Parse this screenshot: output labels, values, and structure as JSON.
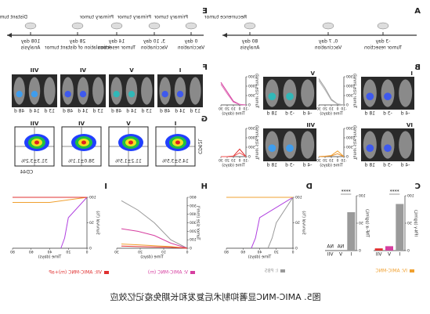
{
  "timeline_a": {
    "label": "A",
    "items": [
      {
        "day": "-3 day",
        "desc": "Tumor resection"
      },
      {
        "day": "0, 7 day",
        "desc": "Vaccination"
      },
      {
        "day": "80 day",
        "desc": "Analysis"
      }
    ],
    "notes": [
      "Recurrence tumor"
    ]
  },
  "timeline_e": {
    "label": "E",
    "items": [
      {
        "day": "0 day",
        "desc": "Vaccination"
      },
      {
        "day": "3, 10 day",
        "desc": "Vaccination"
      },
      {
        "day": "14 day",
        "desc": "Tumor resection"
      },
      {
        "day": "28 day",
        "desc": "Inoculation of distant tumor"
      },
      {
        "day": "108 day",
        "desc": "Analysis"
      }
    ],
    "notes": [
      "Primary tumor",
      "Primary tumor",
      "Primary tumor",
      "Distant tumor"
    ]
  },
  "imaging_b": {
    "label": "B",
    "y_label": "Tumor size (mm³)",
    "x_label": "Time (days)",
    "groups": [
      {
        "name": "I",
        "days": [
          "-4 d",
          "-3 d",
          "18 d"
        ],
        "chart": {
          "type": "line",
          "x": [
            -10,
            0,
            10,
            20,
            30
          ],
          "xlim": [
            -10,
            30
          ],
          "ylim": [
            0,
            1500
          ],
          "xticks": [
            -10,
            0,
            10,
            20,
            30
          ],
          "yticks": [
            0,
            500,
            1000,
            1500
          ],
          "series": [
            {
              "color": "#9a9a9a",
              "values": [
                0,
                50,
                300,
                900,
                1400
              ]
            },
            {
              "color": "#b5b5b5",
              "values": [
                0,
                40,
                250,
                800,
                1300
              ]
            }
          ]
        }
      },
      {
        "name": "V",
        "days": [
          "-4 d",
          "-3 d",
          "18 d"
        ],
        "chart": {
          "type": "line",
          "x": [
            -10,
            0,
            10,
            20,
            30
          ],
          "xlim": [
            -10,
            30
          ],
          "ylim": [
            0,
            1500
          ],
          "xticks": [
            -10,
            0,
            10,
            20,
            30
          ],
          "yticks": [
            0,
            500,
            1000,
            1500
          ],
          "series": [
            {
              "color": "#d63fa0",
              "values": [
                0,
                30,
                200,
                700,
                1200
              ]
            },
            {
              "color": "#e070b8",
              "values": [
                0,
                20,
                150,
                600,
                1100
              ]
            }
          ]
        }
      },
      {
        "name": "IV",
        "days": [
          "-4 d",
          "-3 d",
          "18 d"
        ],
        "chart": {
          "type": "line",
          "x": [
            -10,
            0,
            10,
            20,
            30
          ],
          "xlim": [
            -10,
            30
          ],
          "ylim": [
            0,
            1500
          ],
          "xticks": [
            -10,
            0,
            10,
            20,
            30
          ],
          "yticks": [
            0,
            500,
            1000,
            1500
          ],
          "series": [
            {
              "color": "#f0a030",
              "values": [
                0,
                300,
                60,
                20,
                0
              ]
            },
            {
              "color": "#e8902a",
              "values": [
                0,
                150,
                40,
                10,
                0
              ]
            }
          ]
        }
      },
      {
        "name": "VII",
        "days": [
          "-4 d",
          "-3 d",
          "18 d"
        ],
        "chart": {
          "type": "line",
          "x": [
            -10,
            0,
            10,
            20,
            30
          ],
          "xlim": [
            -10,
            30
          ],
          "ylim": [
            0,
            1500
          ],
          "xticks": [
            -10,
            0,
            10,
            20,
            30
          ],
          "yticks": [
            0,
            500,
            1000,
            1500
          ],
          "series": [
            {
              "color": "#e03030",
              "values": [
                0,
                400,
                30,
                0,
                0
              ]
            },
            {
              "color": "#f05050",
              "values": [
                0,
                200,
                20,
                0,
                0
              ]
            }
          ]
        }
      }
    ]
  },
  "imaging_f": {
    "label": "F",
    "groups": [
      {
        "name": "I",
        "days": [
          "13 d",
          "14 d",
          "48 d"
        ]
      },
      {
        "name": "V",
        "days": [
          "13 d",
          "14 d",
          "48 d"
        ]
      },
      {
        "name": "VI",
        "days": [
          "13 d",
          "14 d",
          "48 d"
        ]
      },
      {
        "name": "VII",
        "days": [
          "13 d",
          "14 d",
          "48 d"
        ]
      }
    ]
  },
  "flow_g": {
    "label": "G",
    "x_axis": "CD44",
    "y_axis": "CD62L",
    "groups": [
      {
        "name": "I",
        "pct": "14.5±3.5%"
      },
      {
        "name": "V",
        "pct": "11.2±1.5%"
      },
      {
        "name": "VI",
        "pct": "38.0±1.1%"
      },
      {
        "name": "VII",
        "pct": "31.3±3.2%"
      }
    ]
  },
  "chart_c": {
    "label": "C",
    "categories": [
      "I",
      "V",
      "VII"
    ],
    "sig": "****",
    "subplots": [
      {
        "y_label": "IFN-γ (pg/mL)",
        "ylim": [
          0,
          100
        ],
        "yticks": [
          0,
          50,
          100
        ],
        "colors": [
          "#9a9a9a",
          "#d63fa0",
          "#e03030"
        ],
        "values": [
          85,
          8,
          4
        ]
      },
      {
        "y_label": "TNF-α (pg/mL)",
        "ylim": [
          0,
          100
        ],
        "yticks": [
          0,
          50,
          100
        ],
        "colors": [
          "#9a9a9a",
          "#d63fa0",
          "#e03030"
        ],
        "values": [
          70,
          null,
          null
        ],
        "value_labels": [
          null,
          "NA",
          "NA"
        ]
      }
    ]
  },
  "chart_d": {
    "label": "D",
    "type": "line",
    "y_label": "Survival (%)",
    "x_label": "Time (days)",
    "xlim": [
      0,
      80
    ],
    "ylim": [
      0,
      100
    ],
    "xticks": [
      0,
      20,
      40,
      60,
      80
    ],
    "yticks": [
      0,
      50,
      100
    ],
    "series": [
      {
        "color": "#9a9a9a",
        "x": [
          0,
          20,
          25,
          30
        ],
        "values": [
          100,
          50,
          20,
          0
        ]
      },
      {
        "color": "#b040e0",
        "x": [
          0,
          40,
          45,
          50
        ],
        "values": [
          100,
          60,
          20,
          0
        ]
      },
      {
        "color": "#f0a030",
        "x": [
          0,
          80
        ],
        "values": [
          100,
          100
        ]
      }
    ]
  },
  "chart_h": {
    "label": "H",
    "type": "line",
    "y_label": "Tumor size (mm³)",
    "x_label": "Time (days)",
    "x": [
      0,
      7,
      14,
      21,
      28
    ],
    "xlim": [
      0,
      30
    ],
    "ylim": [
      0,
      600
    ],
    "xticks": [
      0,
      10,
      20,
      30
    ],
    "yticks": [
      0,
      100,
      200,
      300,
      400,
      500,
      600
    ],
    "series": [
      {
        "color": "#9a9a9a",
        "values": [
          0,
          100,
          300,
          450,
          560
        ]
      },
      {
        "color": "#d63fa0",
        "values": [
          0,
          60,
          150,
          200,
          230
        ]
      },
      {
        "color": "#f0a030",
        "values": [
          0,
          20,
          30,
          40,
          50
        ]
      },
      {
        "color": "#e03030",
        "values": [
          0,
          10,
          15,
          20,
          25
        ]
      }
    ]
  },
  "chart_i": {
    "label": "I",
    "type": "line",
    "y_label": "Survival (%)",
    "x_label": "Time (days)",
    "xlim": [
      0,
      80
    ],
    "ylim": [
      0,
      100
    ],
    "xticks": [
      0,
      20,
      40,
      60,
      80
    ],
    "yticks": [
      0,
      50,
      100
    ],
    "series": [
      {
        "color": "#b040e0",
        "x": [
          0,
          20,
          24,
          28
        ],
        "values": [
          100,
          60,
          20,
          0
        ]
      },
      {
        "color": "#f0a030",
        "x": [
          0,
          40,
          80
        ],
        "values": [
          100,
          90,
          90
        ]
      },
      {
        "color": "#e03030",
        "x": [
          0,
          80
        ],
        "values": [
          100,
          100
        ]
      }
    ]
  },
  "legend": [
    {
      "name": "IV: AMIC-MNC",
      "color": "#f0a030"
    },
    {
      "name": "I: PBS",
      "color": "#9a9a9a"
    },
    {
      "name": "V: AMIC-MNC (m)",
      "color": "#d63fa0"
    },
    {
      "name": "VII: AMIC-MNC (m)+aP",
      "color": "#e03030"
    }
  ],
  "caption": "图5. AMIC-MNC显著抑制术后复发和长期免疫记忆效应"
}
